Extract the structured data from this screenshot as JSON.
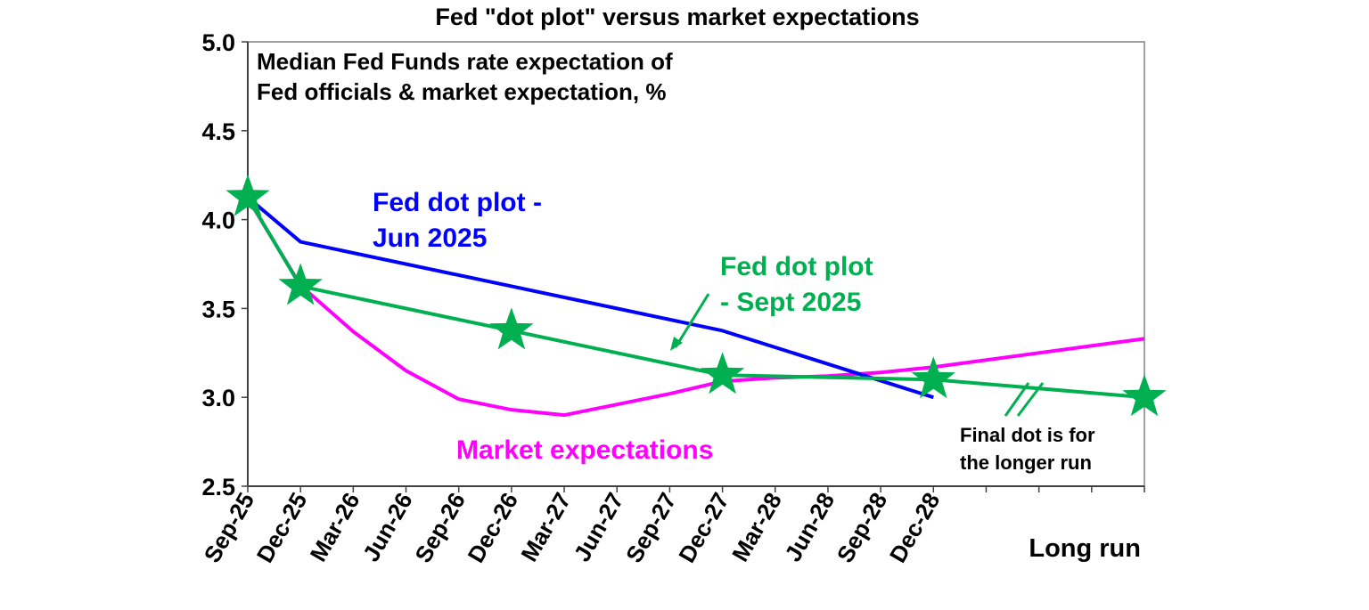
{
  "chart_data": {
    "type": "line",
    "title": "Fed \"dot plot\" versus market expectations",
    "subtitle_lines": [
      "Median Fed Funds rate expectation of",
      "Fed officials & market expectation, %"
    ],
    "categories": [
      "Sep-25",
      "Dec-25",
      "Mar-26",
      "Jun-26",
      "Sep-26",
      "Dec-26",
      "Mar-27",
      "Jun-27",
      "Sep-27",
      "Dec-27",
      "Mar-28",
      "Jun-28",
      "Sep-28",
      "Dec-28",
      "",
      "",
      "",
      "Long run"
    ],
    "ylim": [
      2.5,
      5.0
    ],
    "yticks": [
      "2.5",
      "3.0",
      "3.5",
      "4.0",
      "4.5",
      "5.0"
    ],
    "grid": false,
    "series": [
      {
        "name": "Fed dot plot - Jun 2025",
        "color": "#0000ff",
        "points": [
          [
            0,
            4.125
          ],
          [
            1,
            3.875
          ],
          [
            5,
            3.625
          ],
          [
            9,
            3.375
          ],
          [
            13,
            3.0
          ]
        ]
      },
      {
        "name": "Fed dot plot - Sept 2025",
        "color": "#00b050",
        "marker": "star",
        "points": [
          [
            0,
            4.125
          ],
          [
            1,
            3.625
          ],
          [
            5,
            3.375
          ],
          [
            9,
            3.125
          ],
          [
            13,
            3.1
          ],
          [
            17,
            3.0
          ]
        ]
      },
      {
        "name": "Market expectations",
        "color": "#ff00ff",
        "points": [
          [
            0,
            4.12
          ],
          [
            1,
            3.63
          ],
          [
            2,
            3.37
          ],
          [
            3,
            3.15
          ],
          [
            4,
            2.99
          ],
          [
            5,
            2.93
          ],
          [
            6,
            2.9
          ],
          [
            7,
            2.96
          ],
          [
            8,
            3.02
          ],
          [
            9,
            3.09
          ],
          [
            10,
            3.11
          ],
          [
            11,
            3.12
          ],
          [
            12,
            3.14
          ],
          [
            13,
            3.17
          ],
          [
            17,
            3.33
          ]
        ]
      }
    ],
    "labels": {
      "jun_line1": "Fed dot plot -",
      "jun_line2": "Jun 2025",
      "sept_line1": "Fed dot plot",
      "sept_line2": "- Sept 2025",
      "market": "Market expectations",
      "note_line1": "Final dot is for",
      "note_line2": "the longer run"
    }
  }
}
